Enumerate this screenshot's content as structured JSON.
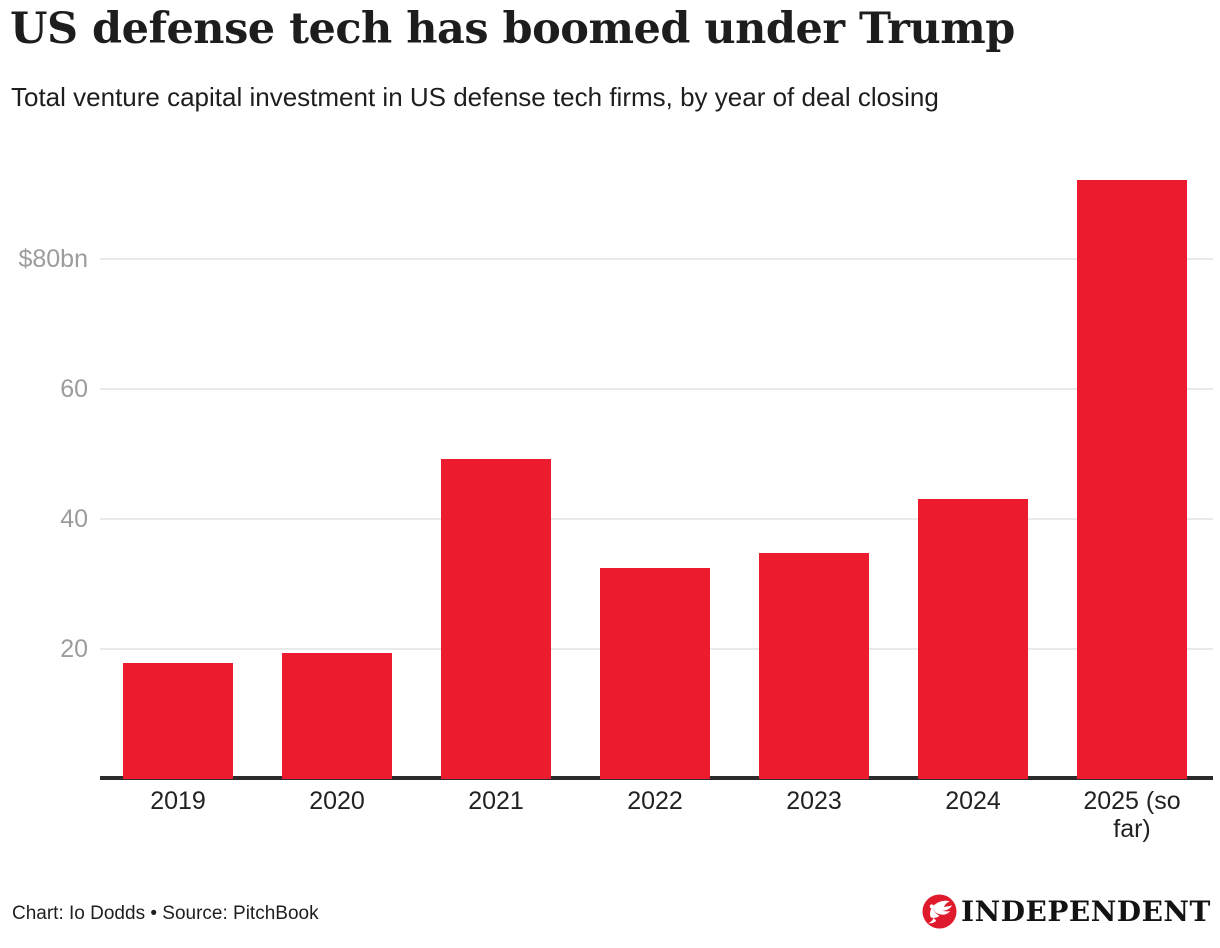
{
  "header": {
    "title": "US defense tech has boomed under Trump",
    "subtitle": "Total venture capital investment in US defense tech firms, by year of deal closing"
  },
  "chart_data": {
    "type": "bar",
    "title": "US defense tech has boomed under Trump",
    "subtitle": "Total venture capital investment in US defense tech firms, by year of deal closing",
    "categories": [
      "2019",
      "2020",
      "2021",
      "2022",
      "2023",
      "2024",
      "2025 (so far)"
    ],
    "values": [
      17.8,
      19.4,
      49.2,
      32.5,
      34.8,
      43.1,
      92.2
    ],
    "unit": "$bn",
    "ylabel": "",
    "xlabel": "",
    "ylim": [
      0,
      92.5
    ],
    "yticks": [
      {
        "value": 20,
        "label": "20"
      },
      {
        "value": 40,
        "label": "40"
      },
      {
        "value": 60,
        "label": "60"
      },
      {
        "value": 80,
        "label": "$80bn"
      }
    ],
    "grid": true,
    "legend": false,
    "bar_color": "#ED1B2E"
  },
  "colors": {
    "bar": "#ED1B2E",
    "gridline": "#EAEAEA",
    "axis_line": "#2B2B2B",
    "y_tick_label": "#9C9C9C",
    "x_tick_label": "#222222",
    "title": "#1D1D1D",
    "logo_red": "#DF1A2C"
  },
  "footer": {
    "credit": "Chart: Io Dodds • Source: PitchBook",
    "logo_text": "INDEPENDENT"
  }
}
